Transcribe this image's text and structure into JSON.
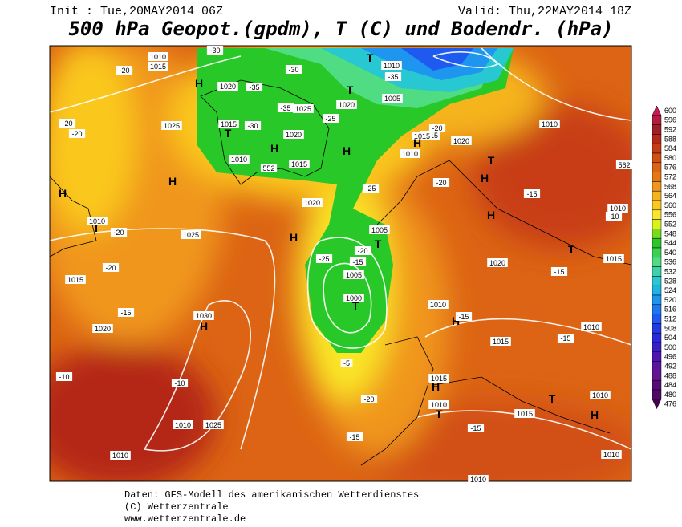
{
  "header": {
    "init": "Init : Tue,20MAY2014 06Z",
    "valid": "Valid: Thu,22MAY2014 18Z",
    "title": "500 hPa Geopot.(gpdm), T (C) und Bodendr. (hPa)"
  },
  "map_labels": [
    "1010",
    "1015",
    "H",
    "1020",
    "-35",
    "-30",
    "T",
    "1010",
    "-35",
    "-30",
    "1005",
    "T",
    "1020",
    "-20",
    "1025",
    "-35",
    "1025",
    "1015",
    "-30",
    "T",
    "H",
    "1020",
    "1010",
    "552",
    "1015",
    "H",
    "H",
    "-25",
    "1010",
    "-25",
    "1015",
    "1020",
    "-20",
    "-20",
    "-20",
    "H",
    "T",
    "1010",
    "-20",
    "1025",
    "-20",
    "1015",
    "H",
    "1020",
    "1005",
    "-25",
    "-20",
    "1005",
    "T",
    "1000",
    "T",
    "-15",
    "1030",
    "H",
    "1020",
    "1010",
    "-10",
    "-15",
    "1015",
    "H",
    "-10",
    "-5",
    "1025",
    "1010",
    "H",
    "-20",
    "-15",
    "1010",
    "T",
    "1015",
    "H",
    "1010",
    "-15",
    "H",
    "-15",
    "T",
    "1015",
    "1010",
    "-15",
    "1010",
    "H",
    "1010",
    "-20",
    "-15",
    "H",
    "1020",
    "1015",
    "-15",
    "-10",
    "1010",
    "1015",
    "T",
    "1010",
    "T",
    "562",
    "-5",
    "1010"
  ],
  "colorbar": {
    "levels": [
      600,
      596,
      592,
      588,
      584,
      580,
      576,
      572,
      568,
      564,
      560,
      556,
      552,
      548,
      544,
      540,
      536,
      532,
      528,
      524,
      520,
      516,
      512,
      508,
      504,
      500,
      496,
      492,
      488,
      484,
      480,
      476
    ],
    "colors": [
      "#d0145a",
      "#b41e3c",
      "#a01e28",
      "#b42814",
      "#c83c14",
      "#d25014",
      "#dc6414",
      "#e67814",
      "#f0961e",
      "#f5b41e",
      "#fac81e",
      "#fae628",
      "#dcf01e",
      "#78dc1e",
      "#28c828",
      "#3cd250",
      "#50dc82",
      "#3cd2aa",
      "#28c8d2",
      "#1eb4e6",
      "#1e96f0",
      "#1e78f0",
      "#1e5af0",
      "#1e3ce6",
      "#2828dc",
      "#3c1ec8",
      "#5014b4",
      "#5a14a0",
      "#64148c",
      "#5a0a78",
      "#500a64",
      "#460050"
    ]
  },
  "footer": {
    "line1": "Daten: GFS-Modell des amerikanischen Wetterdienstes",
    "line2": "(C) Wetterzentrale",
    "line3": "www.wetterzentrale.de"
  }
}
